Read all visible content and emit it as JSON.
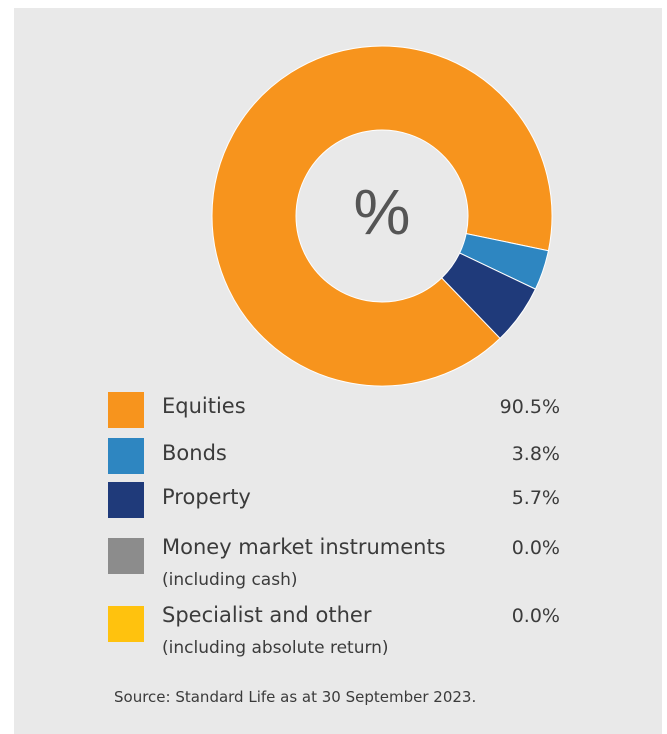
{
  "chart_data": {
    "type": "pie",
    "center_label": "%",
    "categories": [
      "Equities",
      "Bonds",
      "Property",
      "Money market instruments",
      "Specialist and other"
    ],
    "sublabels": [
      "",
      "",
      "",
      "(including cash)",
      "(including absolute return)"
    ],
    "values": [
      90.5,
      3.8,
      5.7,
      0.0,
      0.0
    ],
    "value_labels": [
      "90.5%",
      "3.8%",
      "5.7%",
      "0.0%",
      "0.0%"
    ],
    "colors": [
      "#f7941d",
      "#2e86c1",
      "#1f3a7a",
      "#8c8c8c",
      "#ffc20e"
    ],
    "legend_placement": "bottom"
  },
  "source": "Source: Standard Life as at 30 September 2023."
}
